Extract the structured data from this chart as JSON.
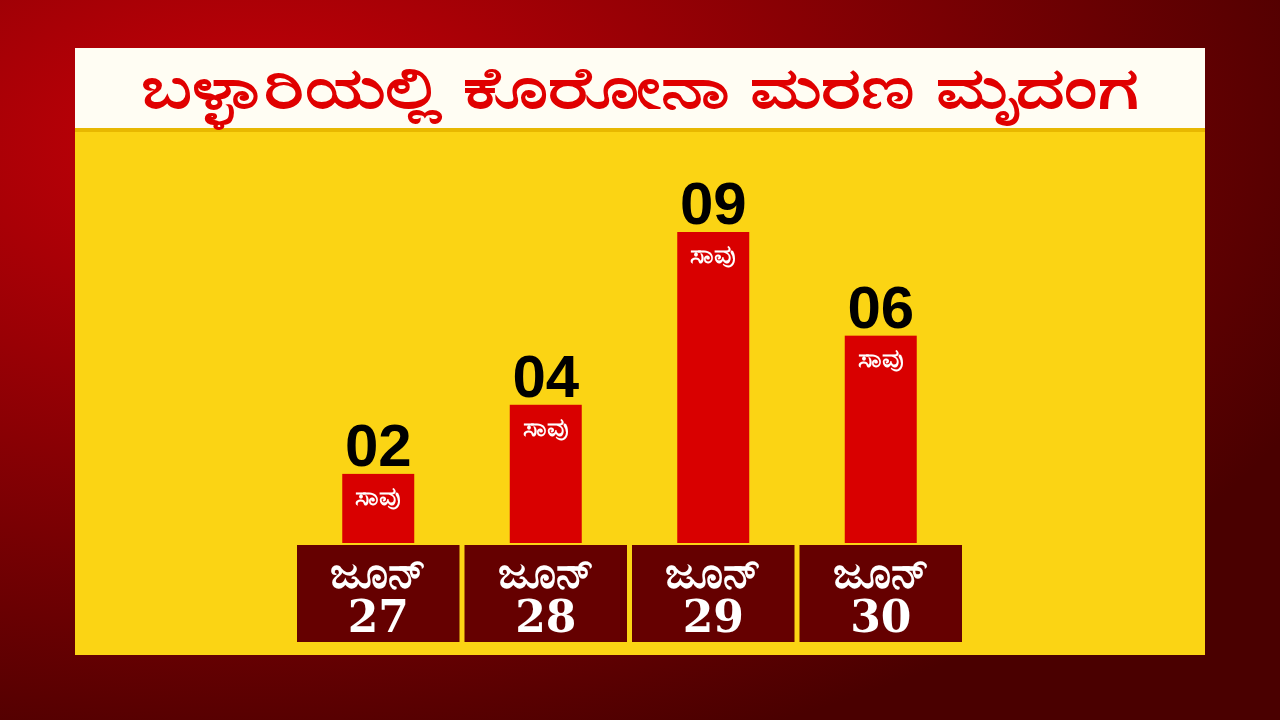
{
  "chart_data": {
    "type": "bar",
    "title": "ಬಳ್ಳಾರಿಯಲ್ಲಿ ಕೊರೋನಾ ಮರಣ ಮೃದಂಗ",
    "categories": [
      "ಜೂನ್ 27",
      "ಜೂನ್ 28",
      "ಜೂನ್ 29",
      "ಜೂನ್ 30"
    ],
    "values": [
      2,
      4,
      9,
      6
    ],
    "value_labels": [
      "02",
      "04",
      "09",
      "06"
    ],
    "color": "#d90000",
    "annotations": [
      {
        "text": "ಸಾವು",
        "x": "ಜೂನ್ 27",
        "y": 2
      },
      {
        "text": "ಸಾವು",
        "x": "ಜೂನ್ 28",
        "y": 4
      },
      {
        "text": "ಸಾವು",
        "x": "ಜೂನ್ 29",
        "y": 9
      },
      {
        "text": "ಸಾವು",
        "x": "ಜೂನ್ 30",
        "y": 6
      }
    ]
  }
}
